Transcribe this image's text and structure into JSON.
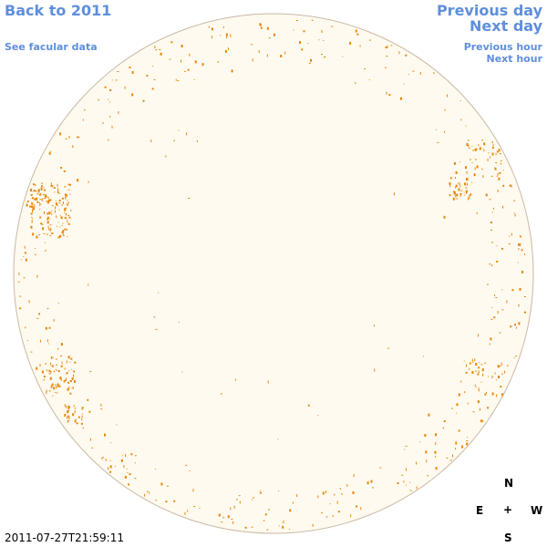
{
  "nav": {
    "back_label": "Back to 2011",
    "facular_label": "See facular data",
    "prev_day_label": "Previous day",
    "next_day_label": "Next day",
    "prev_hour_label": "Previous hour",
    "next_hour_label": "Next hour"
  },
  "compass": {
    "north": "N",
    "east": "E",
    "center": "+",
    "west": "W",
    "south": "S"
  },
  "timestamp": "2011-07-27T21:59:11",
  "colors": {
    "link": "#5f8fdd",
    "disk_fill": "#fffaef",
    "disk_border": "#c9b9a4",
    "facula": "#e6880e",
    "text": "#000000"
  }
}
